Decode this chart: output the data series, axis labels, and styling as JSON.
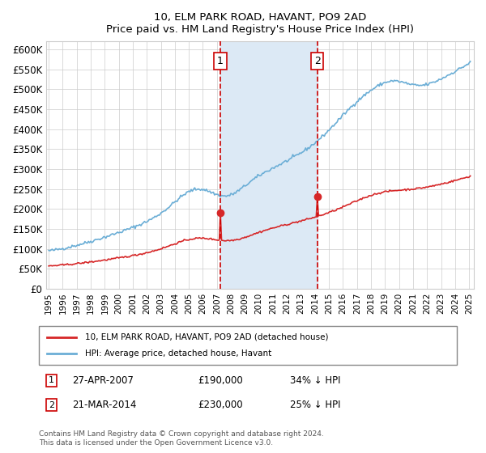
{
  "title": "10, ELM PARK ROAD, HAVANT, PO9 2AD",
  "subtitle": "Price paid vs. HM Land Registry's House Price Index (HPI)",
  "ylim": [
    0,
    620000
  ],
  "yticks": [
    0,
    50000,
    100000,
    150000,
    200000,
    250000,
    300000,
    350000,
    400000,
    450000,
    500000,
    550000,
    600000
  ],
  "ytick_labels": [
    "£0",
    "£50K",
    "£100K",
    "£150K",
    "£200K",
    "£250K",
    "£300K",
    "£350K",
    "£400K",
    "£450K",
    "£500K",
    "£550K",
    "£600K"
  ],
  "hpi_color": "#6baed6",
  "price_color": "#d62728",
  "marker1_price": 190000,
  "marker2_price": 230000,
  "shade_color": "#dce9f5",
  "vline_color": "#cc0000",
  "legend_label_red": "10, ELM PARK ROAD, HAVANT, PO9 2AD (detached house)",
  "legend_label_blue": "HPI: Average price, detached house, Havant",
  "footnote1": "27-APR-2007",
  "footnote2": "21-MAR-2014",
  "footnote1_price": "£190,000",
  "footnote2_price": "£230,000",
  "footnote1_hpi": "34% ↓ HPI",
  "footnote2_hpi": "25% ↓ HPI",
  "copyright_text": "Contains HM Land Registry data © Crown copyright and database right 2024.\nThis data is licensed under the Open Government Licence v3.0."
}
